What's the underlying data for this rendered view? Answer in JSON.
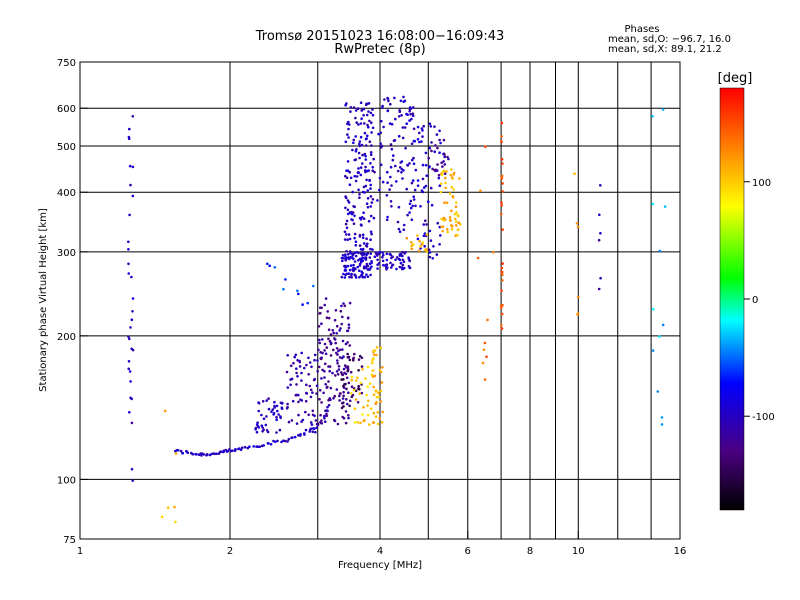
{
  "chart_data": {
    "type": "scatter",
    "title_line1": "Tromsø 20151023 16:08:00−16:09:43",
    "title_line2": "RwPretec (8p)",
    "xlabel": "Frequency [MHz]",
    "ylabel": "Stationary phase Virtual Height [km]",
    "x_scale": "log",
    "y_scale": "log",
    "xlim": [
      1,
      16
    ],
    "ylim": [
      75,
      750
    ],
    "x_ticks": [
      1,
      2,
      4,
      6,
      8,
      10,
      16
    ],
    "x_minor_ticks": [
      3,
      5,
      7,
      9,
      12,
      14
    ],
    "y_ticks": [
      75,
      100,
      200,
      300,
      400,
      500,
      600,
      750
    ],
    "grid": true,
    "phases": {
      "heading": "Phases",
      "line1": "mean, sd,O: −96.7, 16.0",
      "line2": "mean, sd,X:  89.1, 21.2"
    },
    "colorbar": {
      "label": "[deg]",
      "min": -180,
      "max": 180,
      "ticks": [
        100,
        0,
        -100
      ],
      "colors": [
        "#000000",
        "#4b0082",
        "#0000ff",
        "#00ffff",
        "#00ff00",
        "#ffff00",
        "#ff8000",
        "#ff0000"
      ]
    },
    "series": [
      {
        "segments": [
          {
            "points": [
              [
                1.55,
                115
              ],
              [
                1.6,
                114
              ],
              [
                1.65,
                114
              ],
              [
                1.7,
                113
              ],
              [
                1.75,
                113
              ],
              [
                1.8,
                113
              ],
              [
                1.85,
                113
              ],
              [
                1.9,
                114
              ],
              [
                1.95,
                114
              ],
              [
                2.0,
                115
              ],
              [
                2.05,
                115
              ],
              [
                2.1,
                116
              ],
              [
                2.2,
                117
              ],
              [
                2.3,
                118
              ],
              [
                2.4,
                119
              ],
              [
                2.5,
                120
              ],
              [
                2.6,
                121
              ],
              [
                2.7,
                123
              ],
              [
                2.8,
                125
              ],
              [
                2.9,
                127
              ],
              [
                3.0,
                130
              ],
              [
                3.1,
                135
              ],
              [
                3.15,
                142
              ],
              [
                3.2,
                150
              ]
            ],
            "jitter": 0.015,
            "phase": -100
          },
          {
            "type": "cloud",
            "x": [
              2.25,
              2.55
            ],
            "y": [
              125,
              150
            ],
            "n": 45,
            "phase": -100
          },
          {
            "type": "cloud",
            "x": [
              2.6,
              3.0
            ],
            "y": [
              125,
              185
            ],
            "n": 70,
            "phase": -110
          },
          {
            "type": "cloud",
            "x": [
              3.0,
              3.5
            ],
            "y": [
              130,
              240
            ],
            "n": 140,
            "phase": -120
          },
          {
            "type": "cloud",
            "x": [
              3.35,
              3.7
            ],
            "y": [
              140,
              185
            ],
            "n": 40,
            "phase": -140
          },
          {
            "type": "cloud",
            "x": [
              3.5,
              3.85
            ],
            "y": [
              130,
              175
            ],
            "n": 28,
            "phase": 100
          },
          {
            "type": "cloud",
            "x": [
              3.85,
              4.05
            ],
            "y": [
              130,
              190
            ],
            "n": 40,
            "phase": 110
          },
          {
            "type": "cloud",
            "x": [
              3.35,
              3.85
            ],
            "y": [
              265,
              300
            ],
            "n": 110,
            "phase": -95
          },
          {
            "type": "cloud",
            "x": [
              3.4,
              3.9
            ],
            "y": [
              300,
              620
            ],
            "n": 180,
            "phase": -100
          },
          {
            "type": "cloud",
            "x": [
              3.9,
              4.6
            ],
            "y": [
              275,
              300
            ],
            "n": 60,
            "phase": -100
          },
          {
            "type": "cloud",
            "x": [
              3.95,
              4.7
            ],
            "y": [
              330,
              640
            ],
            "n": 100,
            "phase": -100
          },
          {
            "type": "cloud",
            "x": [
              4.6,
              5.3
            ],
            "y": [
              290,
              560
            ],
            "n": 70,
            "phase": -95
          },
          {
            "type": "cloud",
            "x": [
              5.0,
              5.5
            ],
            "y": [
              430,
              520
            ],
            "n": 25,
            "phase": -120
          },
          {
            "type": "cloud",
            "x": [
              5.3,
              5.8
            ],
            "y": [
              320,
              450
            ],
            "n": 55,
            "phase": 110
          },
          {
            "type": "cloud",
            "x": [
              4.5,
              5.3
            ],
            "y": [
              300,
              330
            ],
            "n": 15,
            "phase": 110
          },
          {
            "type": "cloud",
            "x": [
              1.25,
              1.28
            ],
            "y": [
              90,
              580
            ],
            "n": 32,
            "phase": -100
          },
          {
            "type": "cloud",
            "x": [
              7.0,
              7.05
            ],
            "y": [
              200,
              620
            ],
            "n": 28,
            "phase": 150
          },
          {
            "type": "cloud",
            "x": [
              11.0,
              11.1
            ],
            "y": [
              210,
              540
            ],
            "n": 6,
            "phase": -110
          },
          {
            "type": "cloud",
            "x": [
              14.0,
              15.0
            ],
            "y": [
              130,
              600
            ],
            "n": 12,
            "phase": -30
          },
          {
            "type": "cloud",
            "x": [
              9.7,
              10.0
            ],
            "y": [
              105,
              440
            ],
            "n": 6,
            "phase": 120
          },
          {
            "type": "cloud",
            "x": [
              6.2,
              6.8
            ],
            "y": [
              130,
              500
            ],
            "n": 10,
            "phase": 140
          },
          {
            "type": "cloud",
            "x": [
              1.45,
              1.6
            ],
            "y": [
              75,
              140
            ],
            "n": 6,
            "phase": 110
          },
          {
            "type": "cloud",
            "x": [
              2.3,
              3.0
            ],
            "y": [
              210,
              290
            ],
            "n": 10,
            "phase": -60
          }
        ]
      }
    ]
  }
}
